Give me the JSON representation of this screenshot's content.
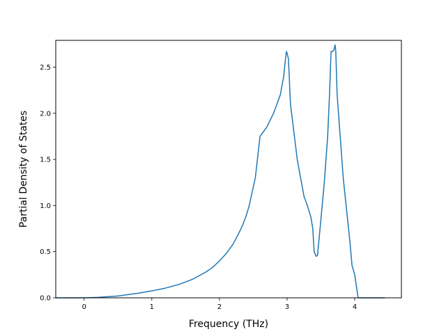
{
  "chart_data": {
    "type": "line",
    "title": "",
    "xlabel": "Frequency (THz)",
    "ylabel": "Partial Density of States",
    "xlim": [
      -0.42,
      4.69
    ],
    "ylim": [
      0.0,
      2.79
    ],
    "grid": false,
    "legend": "none",
    "xticks": [
      0,
      1,
      2,
      3,
      4
    ],
    "xtick_labels": [
      "0",
      "1",
      "2",
      "3",
      "4"
    ],
    "yticks": [
      0.0,
      0.5,
      1.0,
      1.5,
      2.0,
      2.5
    ],
    "ytick_labels": [
      "0.0",
      "0.5",
      "1.0",
      "1.5",
      "2.0",
      "2.5"
    ],
    "series": [
      {
        "color": "#1f77b4",
        "x": [
          -0.42,
          0.0,
          0.2,
          0.5,
          0.8,
          1.0,
          1.2,
          1.4,
          1.6,
          1.8,
          1.9,
          2.0,
          2.1,
          2.2,
          2.3,
          2.35,
          2.4,
          2.44,
          2.47,
          2.5,
          2.53,
          2.6,
          2.7,
          2.8,
          2.9,
          2.95,
          2.97,
          2.99,
          3.0,
          3.02,
          3.05,
          3.1,
          3.15,
          3.2,
          3.25,
          3.3,
          3.35,
          3.38,
          3.4,
          3.43,
          3.45,
          3.5,
          3.55,
          3.6,
          3.63,
          3.65,
          3.67,
          3.69,
          3.71,
          3.72,
          3.74,
          3.78,
          3.83,
          3.88,
          3.93,
          3.96,
          4.0,
          4.03,
          4.05,
          4.1,
          4.45
        ],
        "y": [
          0.0,
          0.0,
          0.005,
          0.02,
          0.05,
          0.075,
          0.105,
          0.145,
          0.2,
          0.28,
          0.33,
          0.4,
          0.48,
          0.58,
          0.72,
          0.8,
          0.9,
          1.0,
          1.1,
          1.2,
          1.3,
          1.75,
          1.85,
          2.0,
          2.2,
          2.4,
          2.55,
          2.67,
          2.65,
          2.59,
          2.1,
          1.8,
          1.5,
          1.3,
          1.1,
          1.0,
          0.88,
          0.75,
          0.5,
          0.45,
          0.46,
          0.85,
          1.25,
          1.75,
          2.25,
          2.67,
          2.67,
          2.68,
          2.74,
          2.67,
          2.2,
          1.8,
          1.3,
          0.95,
          0.6,
          0.35,
          0.25,
          0.1,
          0.0,
          0.0,
          0.0
        ]
      }
    ]
  }
}
